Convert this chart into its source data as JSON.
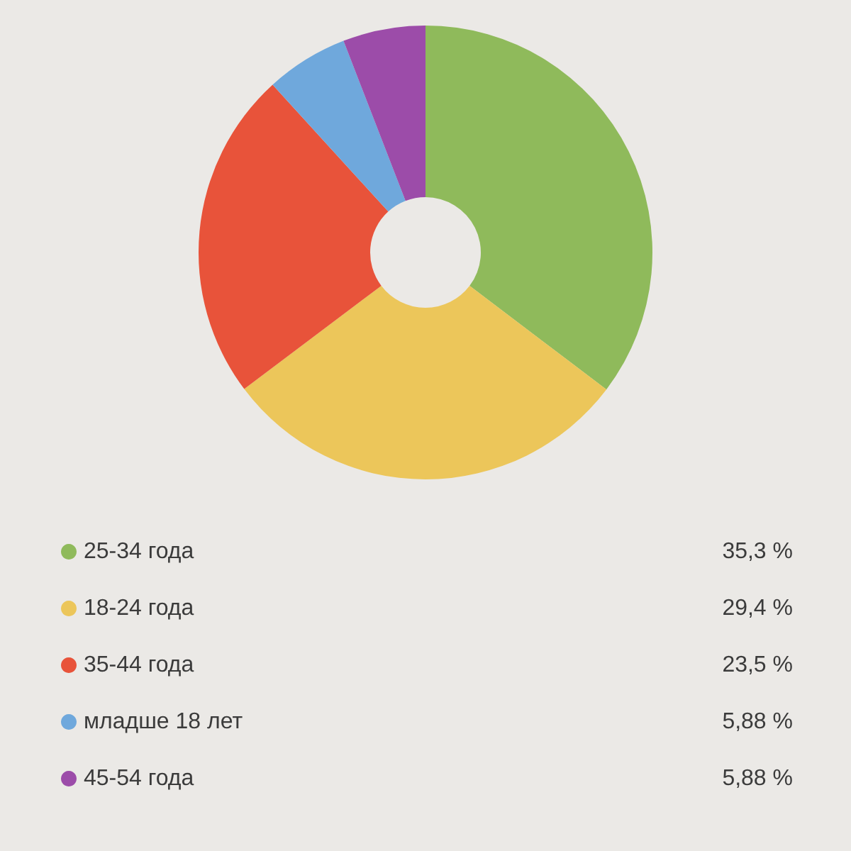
{
  "chart_data": {
    "type": "donut",
    "categories": [
      "25-34 года",
      "18-24 года",
      "35-44 года",
      "младше 18 лет",
      "45-54 года"
    ],
    "values": [
      35.3,
      29.4,
      23.5,
      5.88,
      5.88
    ],
    "colors": [
      "#8fba5b",
      "#ecc65a",
      "#e8533a",
      "#6fa8dc",
      "#9c4ca9"
    ],
    "value_labels": [
      "35,3 %",
      "29,4 %",
      "23,5 %",
      "5,88 %",
      "5,88 %"
    ],
    "legend": "bottom"
  }
}
